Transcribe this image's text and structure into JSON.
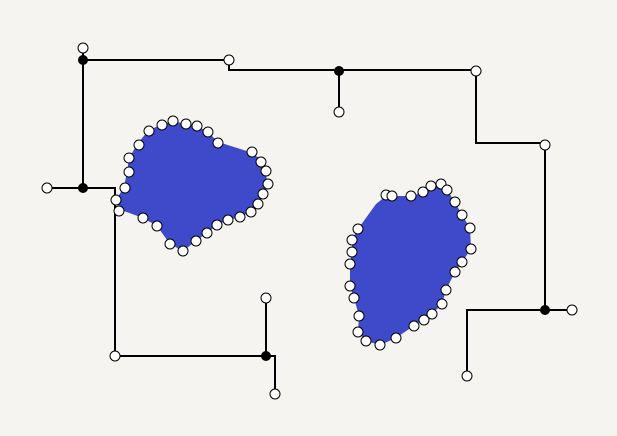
{
  "colors": {
    "background": "#f5f4f0",
    "wire": "#000000",
    "region_fill": "#3f4acb",
    "open_node_fill": "#ffffff",
    "junction_fill": "#000000"
  },
  "icons": {
    "open_node": "hollow-circle",
    "junction": "filled-dot"
  }
}
